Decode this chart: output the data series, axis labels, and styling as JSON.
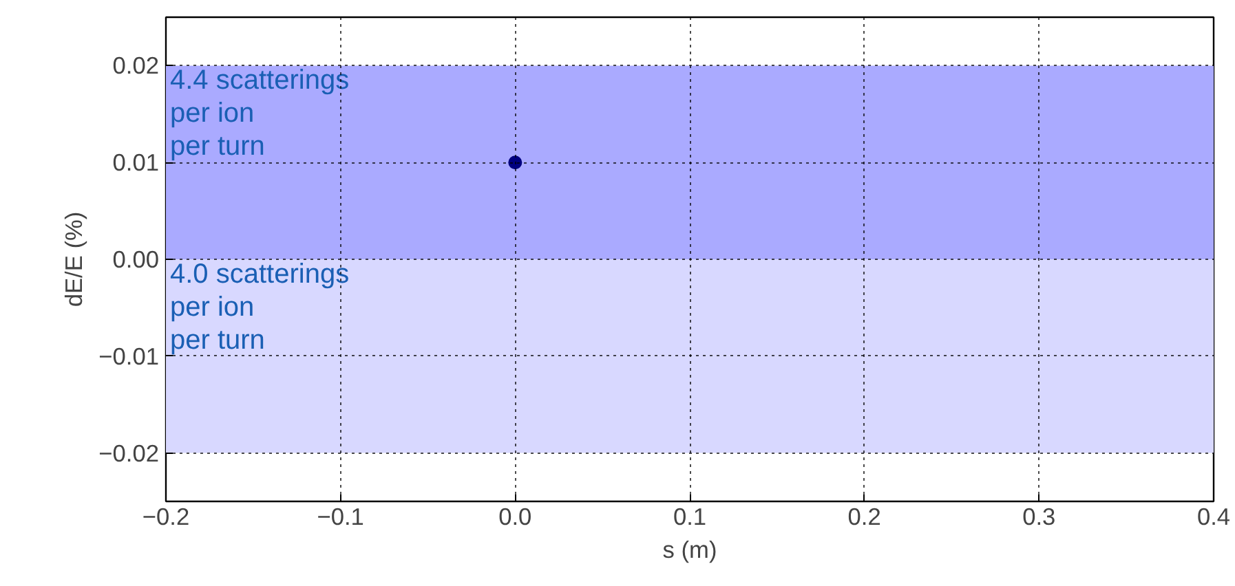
{
  "chart_data": {
    "type": "scatter",
    "xlabel": "s (m)",
    "ylabel": "dE/E (%)",
    "x": [
      0.0
    ],
    "values": [
      0.01
    ],
    "color": "#000080",
    "marker": "circle",
    "xlim": [
      -0.2,
      0.4
    ],
    "ylim": [
      -0.025,
      0.025
    ],
    "xticks": [
      {
        "value": -0.2,
        "label": "−0.2"
      },
      {
        "value": -0.1,
        "label": "−0.1"
      },
      {
        "value": 0.0,
        "label": "0.0"
      },
      {
        "value": 0.1,
        "label": "0.1"
      },
      {
        "value": 0.2,
        "label": "0.2"
      },
      {
        "value": 0.3,
        "label": "0.3"
      },
      {
        "value": 0.4,
        "label": "0.4"
      }
    ],
    "yticks": [
      {
        "value": -0.02,
        "label": "−0.02"
      },
      {
        "value": -0.01,
        "label": "−0.01"
      },
      {
        "value": 0.0,
        "label": "0.00"
      },
      {
        "value": 0.01,
        "label": "0.01"
      },
      {
        "value": 0.02,
        "label": "0.02"
      }
    ],
    "bands": [
      {
        "axis": "y",
        "from": 0.0,
        "to": 0.02,
        "label": "4.4 scatterings\nper ion\nper turn",
        "color": "#aaaaff"
      },
      {
        "axis": "y",
        "from": -0.02,
        "to": 0.0,
        "label": "4.0 scatterings\nper ion\nper turn",
        "color": "#d8d8ff"
      }
    ],
    "grid": true,
    "line_style": "dotted"
  }
}
